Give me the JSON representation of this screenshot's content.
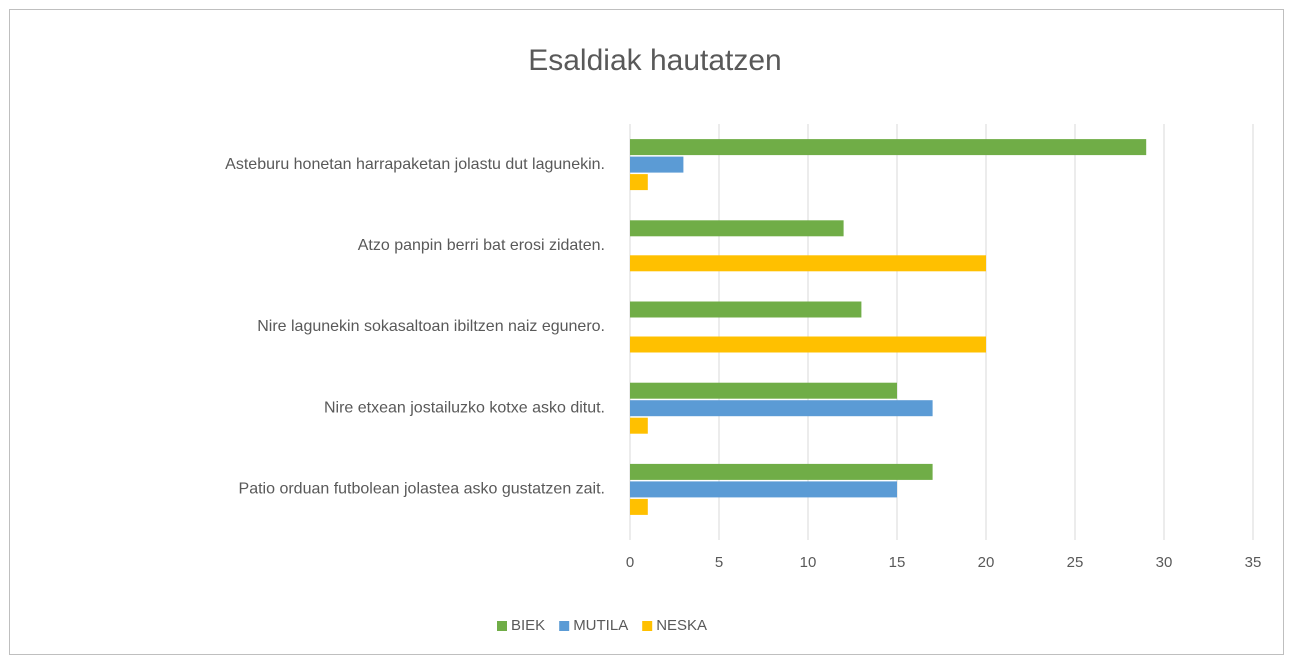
{
  "chart_data": {
    "type": "bar",
    "orientation": "horizontal",
    "title": "Esaldiak hautatzen",
    "categories": [
      "Asteburu honetan harrapaketan jolastu dut lagunekin.",
      "Atzo panpin berri bat erosi zidaten.",
      "Nire lagunekin sokasaltoan ibiltzen naiz egunero.",
      "Nire etxean jostailuzko kotxe asko ditut.",
      "Patio orduan futbolean jolastea asko gustatzen zait."
    ],
    "series": [
      {
        "name": "BIEK",
        "color": "#70ad47",
        "values": [
          29,
          12,
          13,
          15,
          17
        ]
      },
      {
        "name": "MUTILA",
        "color": "#5b9bd5",
        "values": [
          3,
          0,
          0,
          17,
          15
        ]
      },
      {
        "name": "NESKA",
        "color": "#ffc000",
        "values": [
          1,
          20,
          20,
          1,
          1
        ]
      }
    ],
    "xlim": [
      0,
      35
    ],
    "xticks": [
      0,
      5,
      10,
      15,
      20,
      25,
      30,
      35
    ],
    "grid": true,
    "legend": "bottom"
  }
}
